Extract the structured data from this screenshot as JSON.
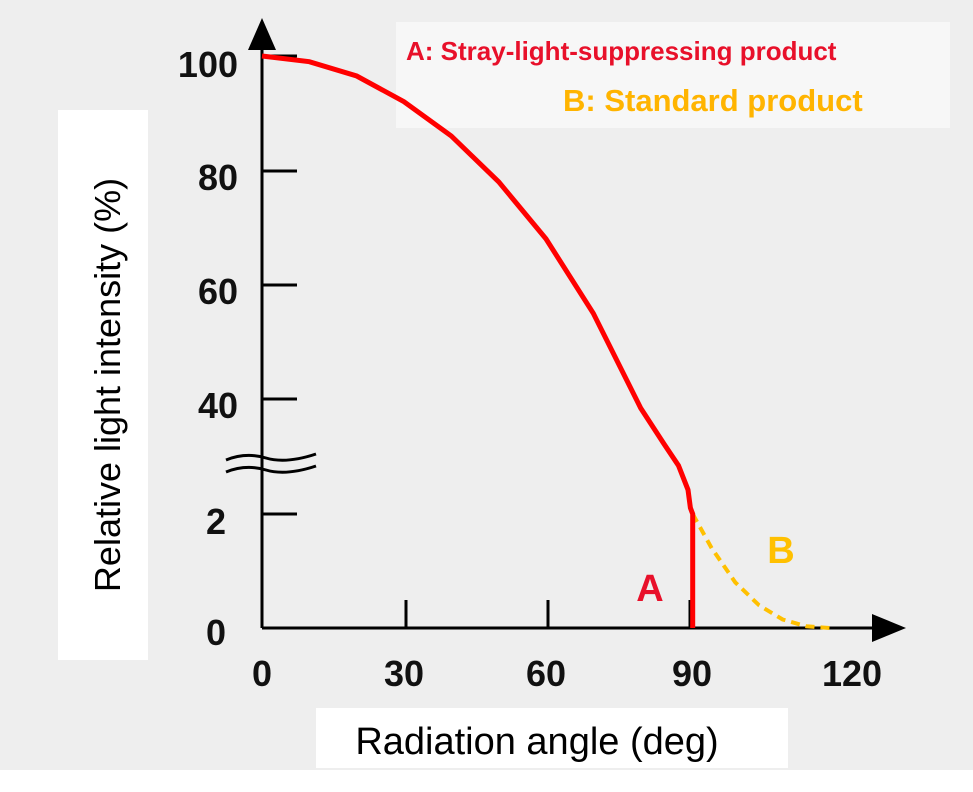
{
  "chart_data": {
    "type": "line",
    "xlabel": "Radiation angle (deg)",
    "ylabel": "Relative light intensity (%)",
    "x_ticks": [
      "0",
      "30",
      "60",
      "90",
      "120"
    ],
    "y_ticks": [
      "0",
      "2",
      "40",
      "60",
      "80",
      "100"
    ],
    "xlim": [
      0,
      120
    ],
    "y_axis_break": "between 2 and 40",
    "legend_position": "top-right",
    "series": [
      {
        "name": "A: Stray-light-suppressing product",
        "label": "A",
        "color": "#ff0000",
        "style": "solid",
        "x": [
          0,
          10,
          20,
          30,
          40,
          50,
          60,
          70,
          80,
          85,
          88,
          90,
          90.5,
          91,
          91,
          91
        ],
        "y": [
          100,
          99,
          96.5,
          92,
          86,
          78,
          68,
          55,
          37,
          25,
          18,
          10,
          4,
          2,
          1,
          0
        ]
      },
      {
        "name": "B: Standard product",
        "label": "B",
        "color": "#ffc000",
        "style": "dashed",
        "x": [
          91,
          95,
          100,
          105,
          110,
          115,
          120
        ],
        "y": [
          2,
          1.4,
          0.8,
          0.4,
          0.15,
          0.03,
          0
        ]
      }
    ]
  }
}
